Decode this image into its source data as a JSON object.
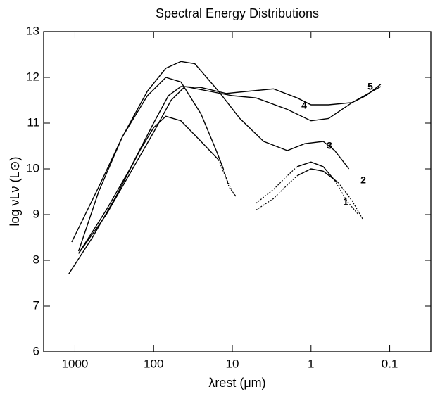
{
  "chart_data": {
    "type": "line",
    "title": "Spectral Energy Distributions",
    "x_label": "λrest (μm)",
    "y_label": "log νLν  (L⊙)",
    "xscale": "log",
    "xlim": [
      2500,
      0.03
    ],
    "xticks": [
      1000,
      100,
      10,
      1,
      0.1
    ],
    "ylim": [
      6,
      13
    ],
    "yticks": [
      6,
      7,
      8,
      9,
      10,
      11,
      12,
      13
    ],
    "grid": false,
    "series": [
      {
        "name": "1",
        "color": "#000000",
        "style": "solid",
        "x": [
          1200,
          600,
          300,
          150,
          100,
          70,
          45,
          25,
          15,
          null,
          1.5,
          1,
          0.7,
          0.45
        ],
        "values": [
          7.7,
          8.5,
          9.4,
          10.4,
          10.9,
          11.15,
          11.05,
          10.6,
          10.2,
          null,
          9.85,
          10.0,
          9.95,
          9.7
        ]
      },
      {
        "name": "2",
        "color": "#000000",
        "style": "solid",
        "x": [
          1100,
          500,
          250,
          120,
          70,
          45,
          25,
          16,
          13,
          null,
          1.5,
          1,
          0.7,
          0.5
        ],
        "values": [
          8.4,
          9.6,
          10.7,
          11.6,
          12.0,
          11.9,
          11.2,
          10.4,
          10.0,
          null,
          10.05,
          10.15,
          10.05,
          9.75
        ]
      },
      {
        "name": "3",
        "color": "#000000",
        "style": "solid",
        "x": [
          900,
          500,
          250,
          120,
          70,
          45,
          30,
          15,
          8,
          4,
          2,
          1.2,
          0.7,
          0.5,
          0.33
        ],
        "values": [
          8.2,
          9.5,
          10.7,
          11.7,
          12.2,
          12.35,
          12.3,
          11.7,
          11.1,
          10.6,
          10.4,
          10.55,
          10.6,
          10.4,
          10.0
        ]
      },
      {
        "name": "4",
        "color": "#000000",
        "style": "solid",
        "x": [
          900,
          400,
          200,
          100,
          65,
          45,
          25,
          12,
          6,
          3,
          1.5,
          1,
          0.6,
          0.3,
          0.2,
          0.13
        ],
        "values": [
          8.15,
          9.1,
          10.0,
          11.0,
          11.6,
          11.8,
          11.78,
          11.65,
          11.7,
          11.75,
          11.55,
          11.4,
          11.4,
          11.45,
          11.6,
          11.85
        ]
      },
      {
        "name": "5",
        "color": "#000000",
        "style": "solid",
        "x": [
          900,
          400,
          200,
          100,
          60,
          40,
          20,
          10,
          5,
          2,
          1,
          0.6,
          0.3,
          0.13
        ],
        "values": [
          8.15,
          9.0,
          9.9,
          10.8,
          11.5,
          11.8,
          11.7,
          11.6,
          11.55,
          11.3,
          11.05,
          11.1,
          11.45,
          11.8
        ]
      },
      {
        "color": "#000000",
        "style": "dotted",
        "x": [
          15,
          12,
          10,
          9,
          null,
          5,
          3,
          2,
          1.5,
          null,
          0.45,
          0.3,
          0.22
        ],
        "values": [
          10.2,
          9.8,
          9.5,
          9.4,
          null,
          9.1,
          9.35,
          9.65,
          9.85,
          null,
          9.7,
          9.3,
          8.9
        ]
      },
      {
        "color": "#000000",
        "style": "dotted",
        "x": [
          13,
          11,
          9,
          null,
          5,
          3,
          2,
          1.5,
          null,
          0.5,
          0.35,
          0.25
        ],
        "values": [
          10.0,
          9.6,
          9.4,
          null,
          9.25,
          9.55,
          9.85,
          10.05,
          null,
          9.75,
          9.3,
          9.0
        ]
      }
    ]
  }
}
